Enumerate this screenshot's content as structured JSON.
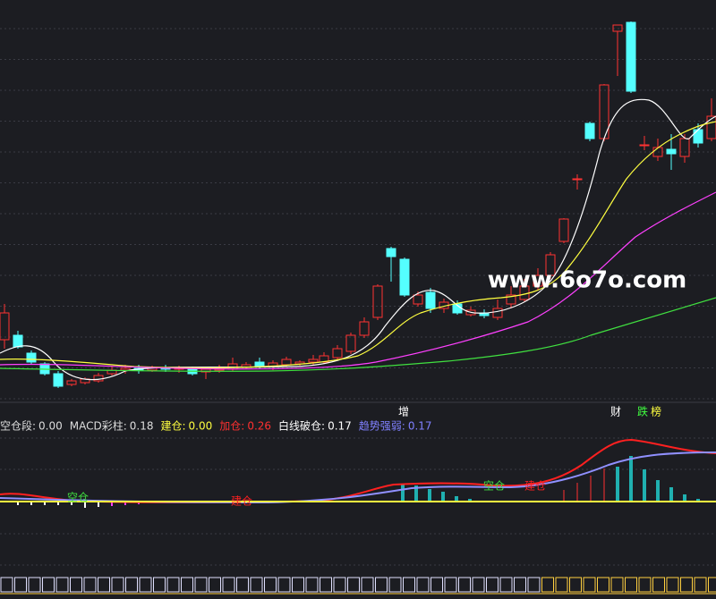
{
  "watermark": "www.6o7o.com",
  "markers": [
    "增",
    "财",
    "跌",
    "榜"
  ],
  "indicator_legend": [
    {
      "name": "空仓段:",
      "value": "0.00"
    },
    {
      "name": "MACD彩柱:",
      "value": "0.18"
    },
    {
      "name": "建仓:",
      "value": "0.00"
    },
    {
      "name": "加仓:",
      "value": "0.26"
    },
    {
      "name": "白线破仓:",
      "value": "0.17"
    },
    {
      "name": "趋势强弱:",
      "value": "0.17"
    }
  ],
  "panel_labels": [
    "空仓",
    "建仓",
    "空仓",
    "建仓"
  ]
}
